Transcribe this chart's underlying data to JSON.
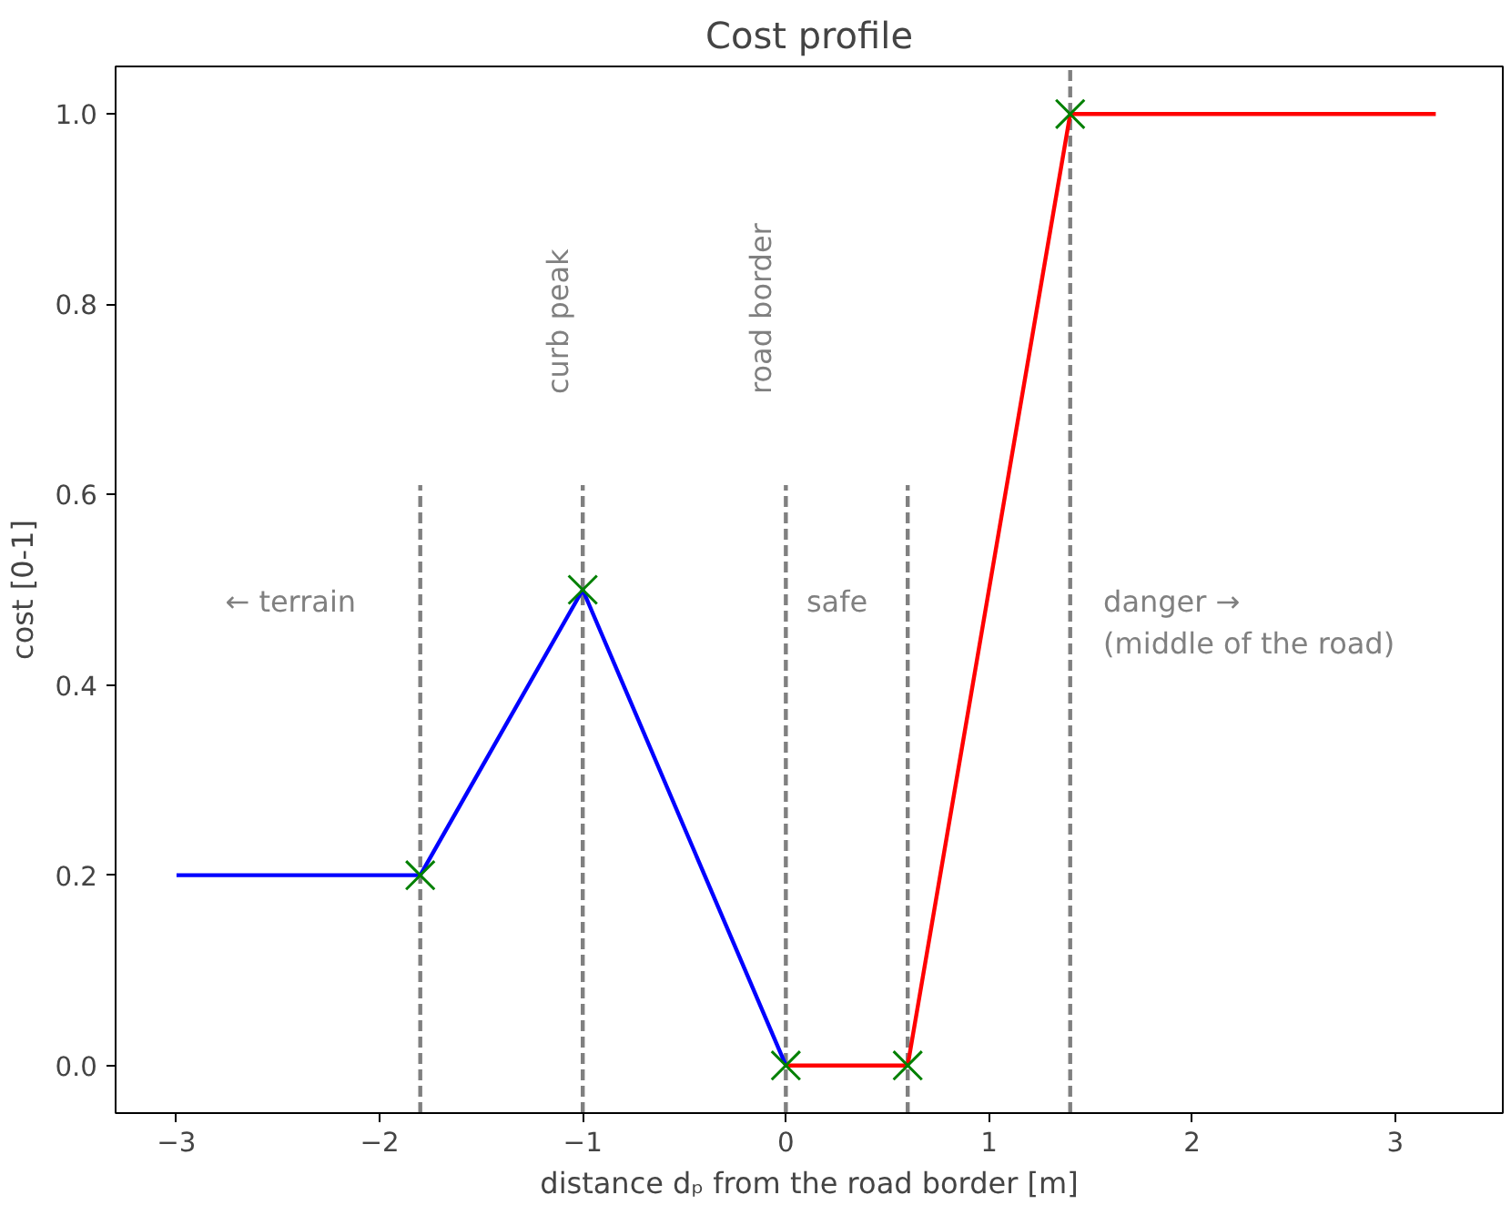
{
  "chart_data": {
    "type": "line",
    "title": "Cost profile",
    "xlabel": "distance dₚ from the road border [m]",
    "ylabel": "cost [0-1]",
    "xlim": [
      -3.3,
      3.53
    ],
    "ylim": [
      -0.05,
      1.05
    ],
    "xticks": [
      {
        "value": -3,
        "label": "−3"
      },
      {
        "value": -2,
        "label": "−2"
      },
      {
        "value": -1,
        "label": "−1"
      },
      0,
      1,
      2,
      3
    ],
    "yticks": [
      {
        "value": 0,
        "label": "0.0"
      },
      0.2,
      0.4,
      0.6,
      0.8,
      {
        "value": 1,
        "label": "1.0"
      }
    ],
    "series": [
      {
        "type": "line",
        "color": "#808080",
        "line_style": "dashed",
        "x": [
          -1.8,
          -1.8
        ],
        "values": [
          -0.05,
          0.61
        ]
      },
      {
        "type": "line",
        "color": "#808080",
        "line_style": "dashed",
        "x": [
          -1,
          -1
        ],
        "values": [
          -0.05,
          0.61
        ]
      },
      {
        "type": "line",
        "color": "#808080",
        "line_style": "dashed",
        "x": [
          0,
          0
        ],
        "values": [
          -0.05,
          0.61
        ]
      },
      {
        "type": "line",
        "color": "#808080",
        "line_style": "dashed",
        "x": [
          0.6,
          0.6
        ],
        "values": [
          -0.05,
          0.61
        ]
      },
      {
        "type": "line",
        "color": "#808080",
        "line_style": "dashed",
        "x": [
          1.4,
          1.4
        ],
        "values": [
          -0.05,
          1.05
        ]
      },
      {
        "color": "#0000ff",
        "line_style": "solid",
        "x": [
          -3,
          -1.8,
          -1,
          0
        ],
        "values": [
          0.2,
          0.2,
          0.5,
          0
        ]
      },
      {
        "color": "#ff0000",
        "line_style": "solid",
        "x": [
          0,
          0.6,
          1.4,
          3.2
        ],
        "values": [
          0,
          0,
          1,
          1
        ]
      },
      {
        "type": "scatter",
        "color": "#008000",
        "marker": "cross",
        "x": [
          -1.8,
          -1,
          0,
          0.6,
          1.4
        ],
        "values": [
          0.2,
          0.5,
          0,
          0,
          1
        ]
      }
    ],
    "annotations": [
      "curb peak",
      "road border",
      "← terrain",
      "safe",
      "danger →\n(middle of the road)"
    ]
  }
}
